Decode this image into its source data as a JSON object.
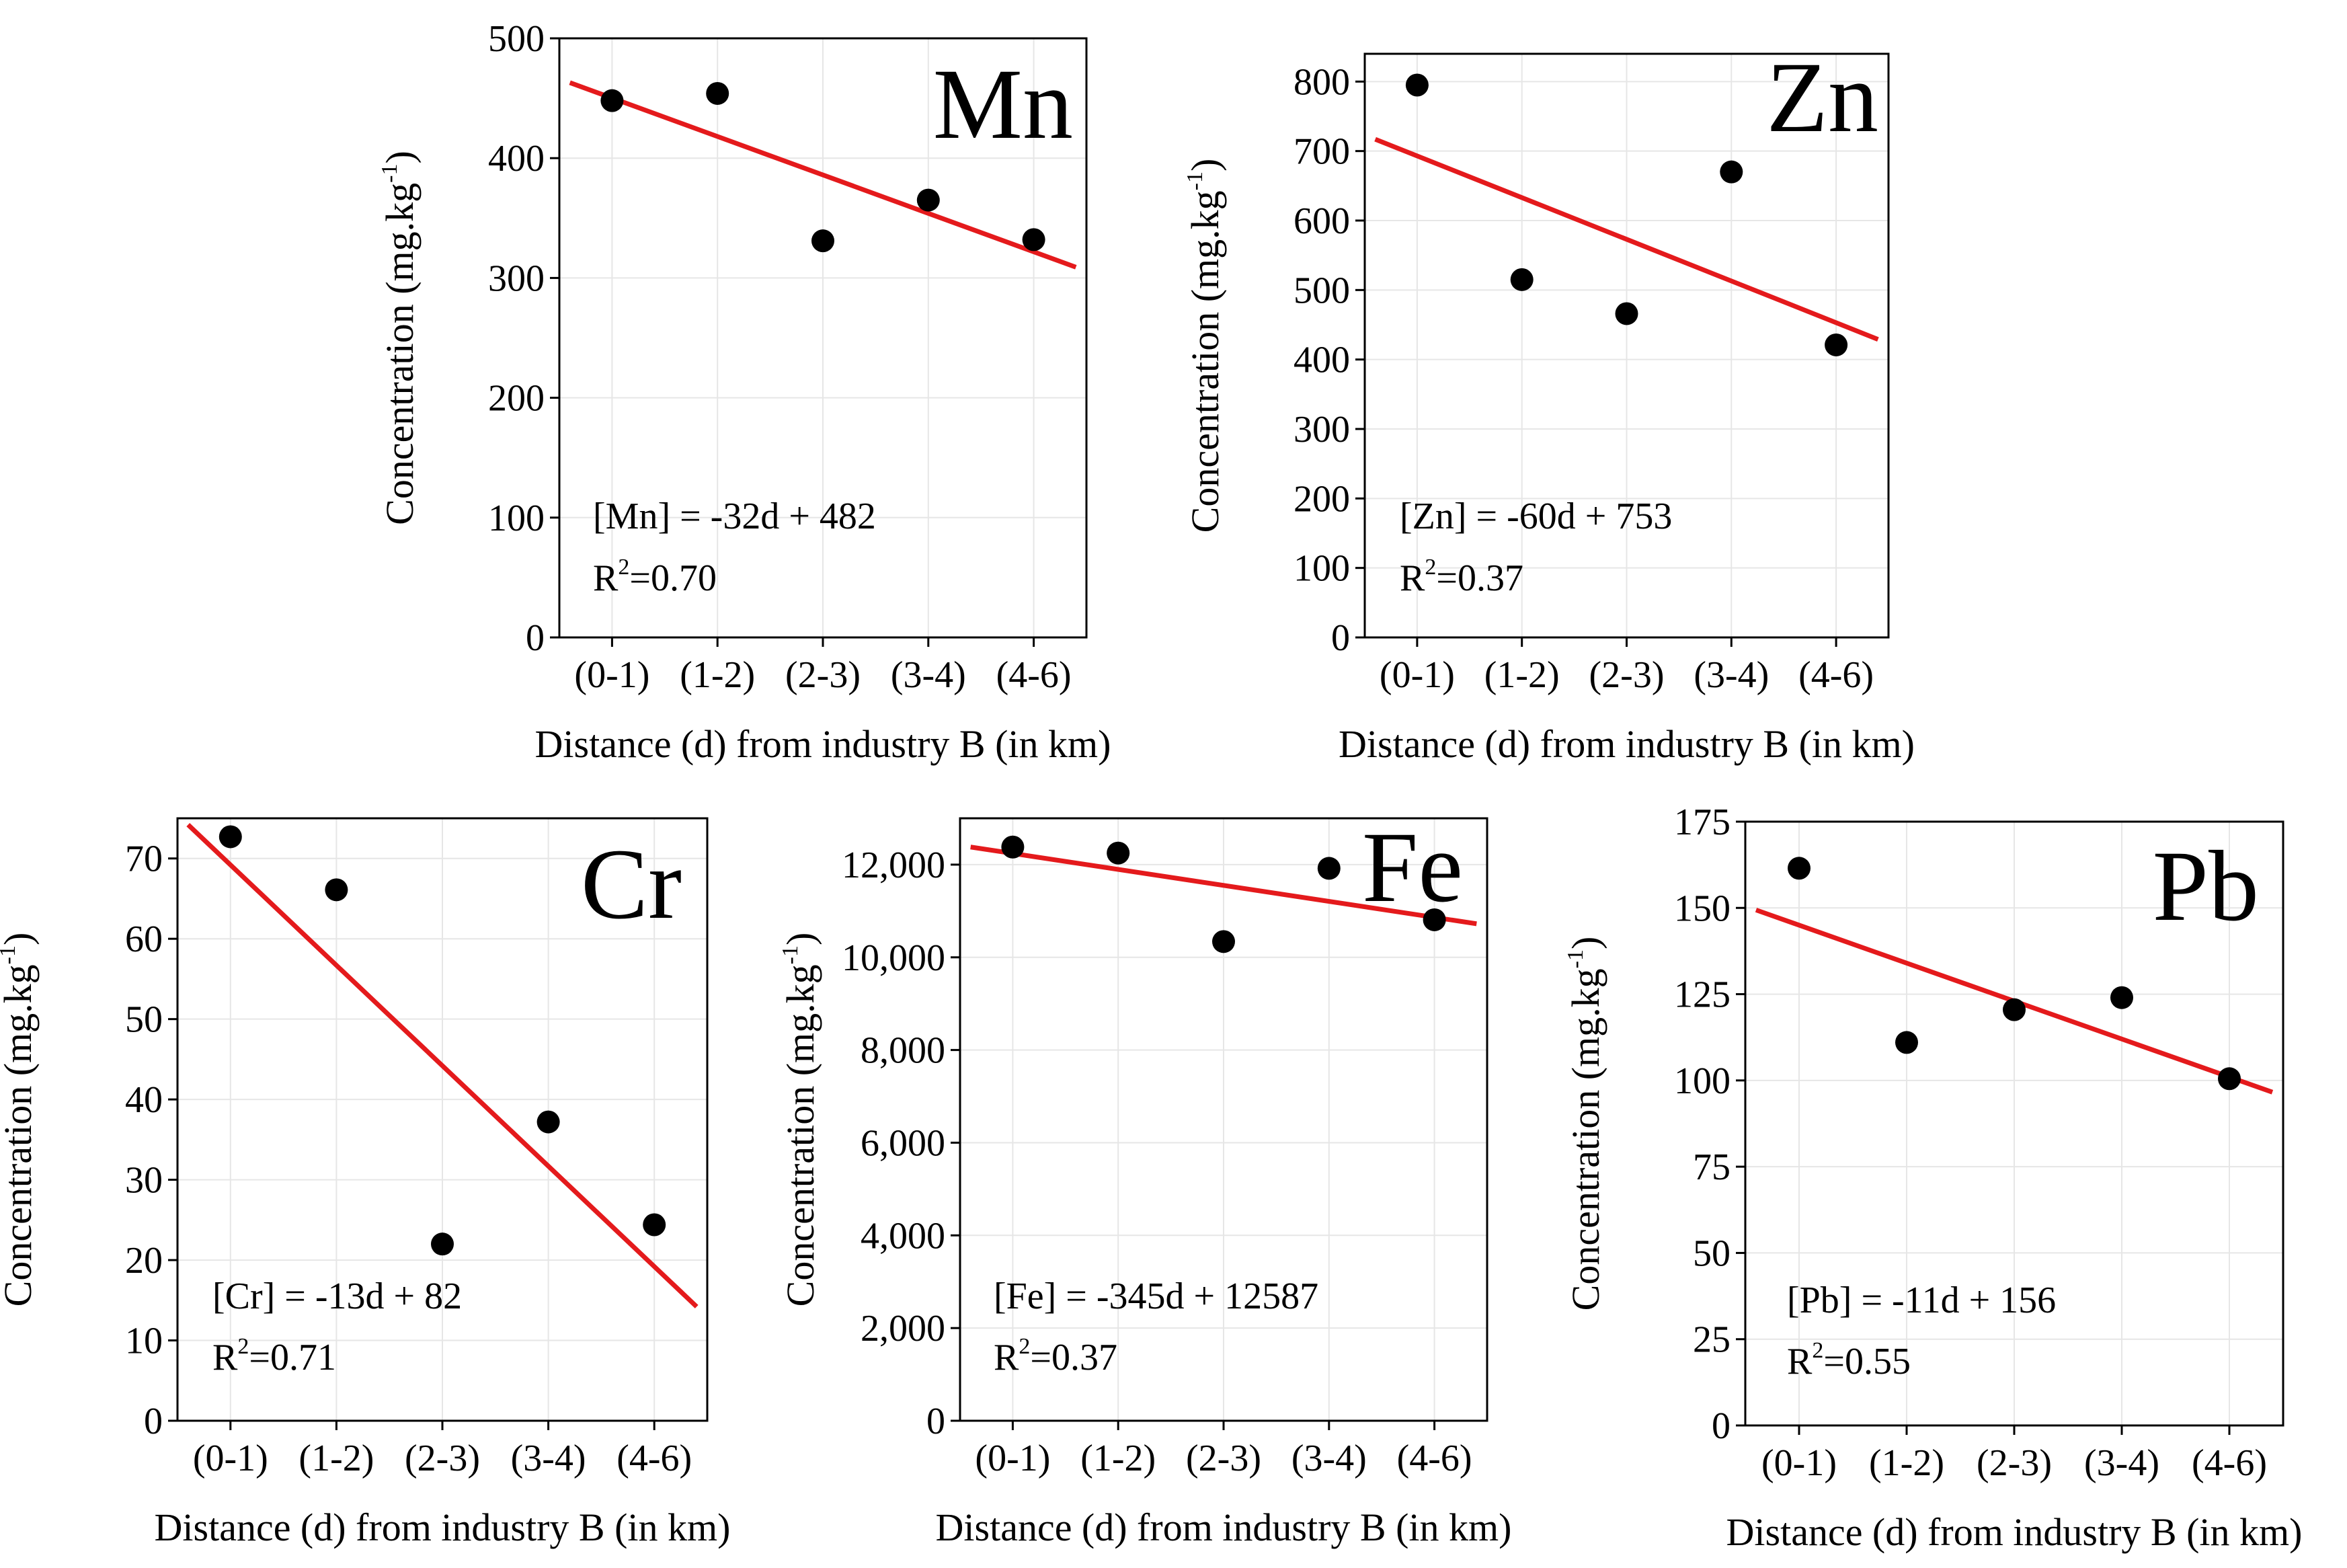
{
  "figure_caption": "",
  "chart_data": [
    {
      "type": "scatter",
      "element": "Mn",
      "categories": [
        "(0-1)",
        "(1-2)",
        "(2-3)",
        "(3-4)",
        "(4-6)"
      ],
      "values": [
        448,
        454,
        331,
        365,
        332
      ],
      "yticks": [
        0,
        100,
        200,
        300,
        400,
        500
      ],
      "ytick_labels": [
        "0",
        "100",
        "200",
        "300",
        "400",
        "500"
      ],
      "ylim": [
        0,
        500
      ],
      "xlabel": "Distance (d) from industry B (in km)",
      "ylabel_main": "Concentration (mg.kg",
      "ylabel_sup": "-1",
      "ylabel_close": ")",
      "trend": {
        "x": [
          0.6,
          5.4
        ],
        "y": [
          463,
          309
        ]
      },
      "equation": "[Mn] = -32d + 482",
      "r2_prefix": "R",
      "r2_sup": "2",
      "r2_value": "=0.70",
      "grid": true
    },
    {
      "type": "scatter",
      "element": "Zn",
      "categories": [
        "(0-1)",
        "(1-2)",
        "(2-3)",
        "(3-4)",
        "(4-6)"
      ],
      "values": [
        795,
        515,
        466,
        670,
        421
      ],
      "yticks": [
        0,
        100,
        200,
        300,
        400,
        500,
        600,
        700,
        800
      ],
      "ytick_labels": [
        "0",
        "100",
        "200",
        "300",
        "400",
        "500",
        "600",
        "700",
        "800"
      ],
      "ylim": [
        0,
        840
      ],
      "xlabel": "Distance (d) from industry B (in km)",
      "ylabel_main": "Concentration (mg.kg",
      "ylabel_sup": "-1",
      "ylabel_close": ")",
      "trend": {
        "x": [
          0.6,
          5.4
        ],
        "y": [
          717,
          429
        ]
      },
      "equation": "[Zn] = -60d + 753",
      "r2_prefix": "R",
      "r2_sup": "2",
      "r2_value": "=0.37",
      "grid": true
    },
    {
      "type": "scatter",
      "element": "Cr",
      "categories": [
        "(0-1)",
        "(1-2)",
        "(2-3)",
        "(3-4)",
        "(4-6)"
      ],
      "values": [
        72.7,
        66.1,
        22.0,
        37.2,
        24.4
      ],
      "yticks": [
        0,
        10,
        20,
        30,
        40,
        50,
        60,
        70
      ],
      "ytick_labels": [
        "0",
        "10",
        "20",
        "30",
        "40",
        "50",
        "60",
        "70"
      ],
      "ylim": [
        0,
        75
      ],
      "xlabel": "Distance (d) from industry B (in km)",
      "ylabel_main": "Concentration (mg.kg",
      "ylabel_sup": "-1",
      "ylabel_close": ")",
      "trend": {
        "x": [
          0.6,
          5.4
        ],
        "y": [
          74.2,
          14.2
        ]
      },
      "equation": "[Cr] = -13d + 82",
      "r2_prefix": "R",
      "r2_sup": "2",
      "r2_value": "=0.71",
      "grid": true
    },
    {
      "type": "scatter",
      "element": "Fe",
      "categories": [
        "(0-1)",
        "(1-2)",
        "(2-3)",
        "(3-4)",
        "(4-6)"
      ],
      "values": [
        12380,
        12250,
        10340,
        11920,
        10810
      ],
      "yticks": [
        0,
        2000,
        4000,
        6000,
        8000,
        10000,
        12000
      ],
      "ytick_labels": [
        "0",
        "2,000",
        "4,000",
        "6,000",
        "8,000",
        "10,000",
        "12,000"
      ],
      "ylim": [
        0,
        13000
      ],
      "xlabel": "Distance (d) from industry B (in km)",
      "ylabel_main": "Concentration (mg.kg",
      "ylabel_sup": "-1",
      "ylabel_close": ")",
      "trend": {
        "x": [
          0.6,
          5.4
        ],
        "y": [
          12380,
          10724
        ]
      },
      "equation": "[Fe] = -345d + 12587",
      "r2_prefix": "R",
      "r2_sup": "2",
      "r2_value": "=0.37",
      "grid": true
    },
    {
      "type": "scatter",
      "element": "Pb",
      "categories": [
        "(0-1)",
        "(1-2)",
        "(2-3)",
        "(3-4)",
        "(4-6)"
      ],
      "values": [
        161.5,
        111.0,
        120.5,
        124.0,
        100.5
      ],
      "yticks": [
        0,
        25,
        50,
        75,
        100,
        125,
        150,
        175
      ],
      "ytick_labels": [
        "0",
        "25",
        "50",
        "75",
        "100",
        "125",
        "150",
        "175"
      ],
      "ylim": [
        0,
        175
      ],
      "xlabel": "Distance (d) from industry B (in km)",
      "ylabel_main": "Concentration (mg.kg",
      "ylabel_sup": "-1",
      "ylabel_close": ")",
      "trend": {
        "x": [
          0.6,
          5.4
        ],
        "y": [
          149.4,
          96.6
        ]
      },
      "equation": "[Pb] = -11d + 156",
      "r2_prefix": "R",
      "r2_sup": "2",
      "r2_value": "=0.55",
      "grid": true
    }
  ]
}
